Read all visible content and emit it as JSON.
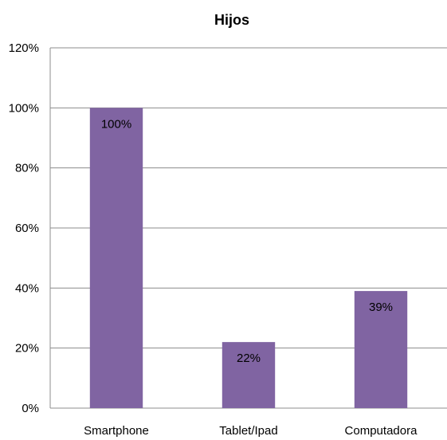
{
  "chart_data": {
    "type": "bar",
    "title": "Hijos",
    "categories": [
      "Smartphone",
      "Tablet/Ipad",
      "Computadora"
    ],
    "values": [
      100,
      22,
      39
    ],
    "data_labels": [
      "100%",
      "22%",
      "39%"
    ],
    "ylim": [
      0,
      120
    ],
    "yticks": [
      0,
      20,
      40,
      60,
      80,
      100,
      120
    ],
    "ytick_labels": [
      "0%",
      "20%",
      "40%",
      "60%",
      "80%",
      "100%",
      "120%"
    ],
    "xlabel": "",
    "ylabel": "",
    "grid": true,
    "legend": "none",
    "bar_color": "#8064A2"
  }
}
